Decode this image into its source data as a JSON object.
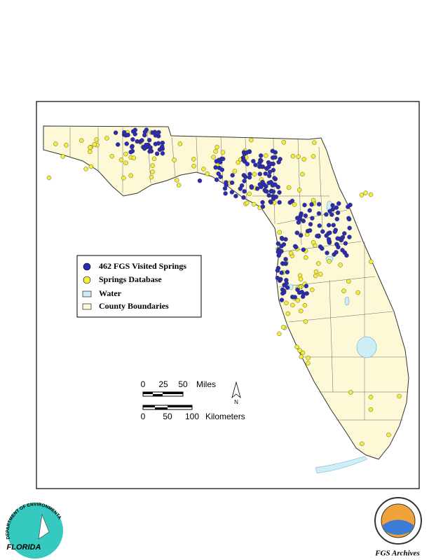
{
  "legend": {
    "items": [
      "462 FGS Visited Springs",
      "Springs Database",
      "Water",
      "County Boundaries"
    ]
  },
  "scale": {
    "miles": [
      "0",
      "25",
      "50",
      "Miles"
    ],
    "kilometers": [
      "0",
      "50",
      "100",
      "Kilometers"
    ]
  },
  "north": "N",
  "logos": {
    "dep_arc": "DEPARTMENT OF ENVIRONMENTAL PROTECTION",
    "dep_state": "FLORIDA",
    "archives": "FGS Archives"
  }
}
